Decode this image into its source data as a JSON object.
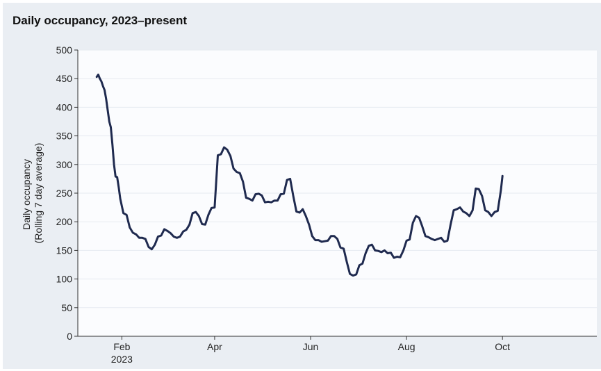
{
  "chart_data": {
    "type": "line",
    "title": "Daily occupancy, 2023–present",
    "ylabel_lines": [
      "Daily occupancy",
      "(Rolling 7 day average)"
    ],
    "ylim": [
      0,
      500
    ],
    "yticks": [
      0,
      50,
      100,
      150,
      200,
      250,
      300,
      350,
      400,
      450,
      500
    ],
    "xlim": [
      "2023-01-04",
      "2023-11-30"
    ],
    "xticks": [
      {
        "date": "2023-02-01",
        "label": "Feb",
        "sublabel": "2023"
      },
      {
        "date": "2023-04-01",
        "label": "Apr",
        "sublabel": ""
      },
      {
        "date": "2023-06-01",
        "label": "Jun",
        "sublabel": ""
      },
      {
        "date": "2023-08-01",
        "label": "Aug",
        "sublabel": ""
      },
      {
        "date": "2023-10-01",
        "label": "Oct",
        "sublabel": ""
      }
    ],
    "grid": true,
    "line_color": "#1f2a4f",
    "series": [
      {
        "name": "",
        "points": [
          [
            "2023-01-16",
            453
          ],
          [
            "2023-01-17",
            457
          ],
          [
            "2023-01-18",
            450
          ],
          [
            "2023-01-19",
            445
          ],
          [
            "2023-01-20",
            437
          ],
          [
            "2023-01-21",
            430
          ],
          [
            "2023-01-22",
            415
          ],
          [
            "2023-01-23",
            395
          ],
          [
            "2023-01-24",
            375
          ],
          [
            "2023-01-25",
            365
          ],
          [
            "2023-01-26",
            335
          ],
          [
            "2023-01-27",
            300
          ],
          [
            "2023-01-28",
            279
          ],
          [
            "2023-01-29",
            278
          ],
          [
            "2023-01-30",
            260
          ],
          [
            "2023-01-31",
            240
          ],
          [
            "2023-02-02",
            215
          ],
          [
            "2023-02-04",
            212
          ],
          [
            "2023-02-06",
            190
          ],
          [
            "2023-02-08",
            181
          ],
          [
            "2023-02-10",
            178
          ],
          [
            "2023-02-12",
            172
          ],
          [
            "2023-02-14",
            172
          ],
          [
            "2023-02-16",
            170
          ],
          [
            "2023-02-18",
            156
          ],
          [
            "2023-02-20",
            152
          ],
          [
            "2023-02-22",
            160
          ],
          [
            "2023-02-24",
            174
          ],
          [
            "2023-02-26",
            176
          ],
          [
            "2023-02-28",
            187
          ],
          [
            "2023-03-02",
            184
          ],
          [
            "2023-03-04",
            180
          ],
          [
            "2023-03-06",
            174
          ],
          [
            "2023-03-08",
            172
          ],
          [
            "2023-03-10",
            174
          ],
          [
            "2023-03-12",
            183
          ],
          [
            "2023-03-14",
            186
          ],
          [
            "2023-03-16",
            195
          ],
          [
            "2023-03-18",
            215
          ],
          [
            "2023-03-20",
            217
          ],
          [
            "2023-03-22",
            210
          ],
          [
            "2023-03-24",
            196
          ],
          [
            "2023-03-26",
            195
          ],
          [
            "2023-03-28",
            212
          ],
          [
            "2023-03-30",
            224
          ],
          [
            "2023-04-01",
            225
          ],
          [
            "2023-04-03",
            316
          ],
          [
            "2023-04-05",
            318
          ],
          [
            "2023-04-07",
            330
          ],
          [
            "2023-04-09",
            326
          ],
          [
            "2023-04-11",
            315
          ],
          [
            "2023-04-13",
            293
          ],
          [
            "2023-04-15",
            287
          ],
          [
            "2023-04-17",
            285
          ],
          [
            "2023-04-19",
            270
          ],
          [
            "2023-04-21",
            242
          ],
          [
            "2023-04-23",
            240
          ],
          [
            "2023-04-25",
            237
          ],
          [
            "2023-04-27",
            248
          ],
          [
            "2023-04-29",
            249
          ],
          [
            "2023-05-01",
            246
          ],
          [
            "2023-05-03",
            234
          ],
          [
            "2023-05-05",
            235
          ],
          [
            "2023-05-07",
            234
          ],
          [
            "2023-05-09",
            237
          ],
          [
            "2023-05-11",
            237
          ],
          [
            "2023-05-13",
            248
          ],
          [
            "2023-05-15",
            249
          ],
          [
            "2023-05-17",
            273
          ],
          [
            "2023-05-19",
            275
          ],
          [
            "2023-05-21",
            245
          ],
          [
            "2023-05-23",
            218
          ],
          [
            "2023-05-25",
            216
          ],
          [
            "2023-05-27",
            222
          ],
          [
            "2023-05-29",
            210
          ],
          [
            "2023-05-31",
            195
          ],
          [
            "2023-06-02",
            175
          ],
          [
            "2023-06-04",
            168
          ],
          [
            "2023-06-06",
            168
          ],
          [
            "2023-06-08",
            165
          ],
          [
            "2023-06-10",
            166
          ],
          [
            "2023-06-12",
            167
          ],
          [
            "2023-06-14",
            175
          ],
          [
            "2023-06-16",
            175
          ],
          [
            "2023-06-18",
            170
          ],
          [
            "2023-06-20",
            155
          ],
          [
            "2023-06-22",
            153
          ],
          [
            "2023-06-24",
            130
          ],
          [
            "2023-06-26",
            109
          ],
          [
            "2023-06-28",
            106
          ],
          [
            "2023-06-30",
            108
          ],
          [
            "2023-07-02",
            124
          ],
          [
            "2023-07-04",
            127
          ],
          [
            "2023-07-06",
            145
          ],
          [
            "2023-07-08",
            158
          ],
          [
            "2023-07-10",
            160
          ],
          [
            "2023-07-12",
            150
          ],
          [
            "2023-07-14",
            149
          ],
          [
            "2023-07-16",
            147
          ],
          [
            "2023-07-18",
            150
          ],
          [
            "2023-07-20",
            145
          ],
          [
            "2023-07-22",
            146
          ],
          [
            "2023-07-24",
            137
          ],
          [
            "2023-07-26",
            139
          ],
          [
            "2023-07-28",
            138
          ],
          [
            "2023-07-30",
            150
          ],
          [
            "2023-08-01",
            167
          ],
          [
            "2023-08-03",
            169
          ],
          [
            "2023-08-05",
            198
          ],
          [
            "2023-08-07",
            210
          ],
          [
            "2023-08-09",
            207
          ],
          [
            "2023-08-11",
            192
          ],
          [
            "2023-08-13",
            175
          ],
          [
            "2023-08-15",
            173
          ],
          [
            "2023-08-17",
            170
          ],
          [
            "2023-08-19",
            168
          ],
          [
            "2023-08-21",
            170
          ],
          [
            "2023-08-23",
            172
          ],
          [
            "2023-08-25",
            165
          ],
          [
            "2023-08-27",
            167
          ],
          [
            "2023-08-29",
            195
          ],
          [
            "2023-08-31",
            220
          ],
          [
            "2023-09-02",
            222
          ],
          [
            "2023-09-04",
            225
          ],
          [
            "2023-09-06",
            218
          ],
          [
            "2023-09-08",
            215
          ],
          [
            "2023-09-10",
            210
          ],
          [
            "2023-09-12",
            220
          ],
          [
            "2023-09-14",
            258
          ],
          [
            "2023-09-16",
            257
          ],
          [
            "2023-09-18",
            245
          ],
          [
            "2023-09-20",
            220
          ],
          [
            "2023-09-22",
            217
          ],
          [
            "2023-09-24",
            210
          ],
          [
            "2023-09-26",
            217
          ],
          [
            "2023-09-28",
            219
          ],
          [
            "2023-09-30",
            255
          ],
          [
            "2023-10-01",
            280
          ]
        ]
      }
    ]
  }
}
